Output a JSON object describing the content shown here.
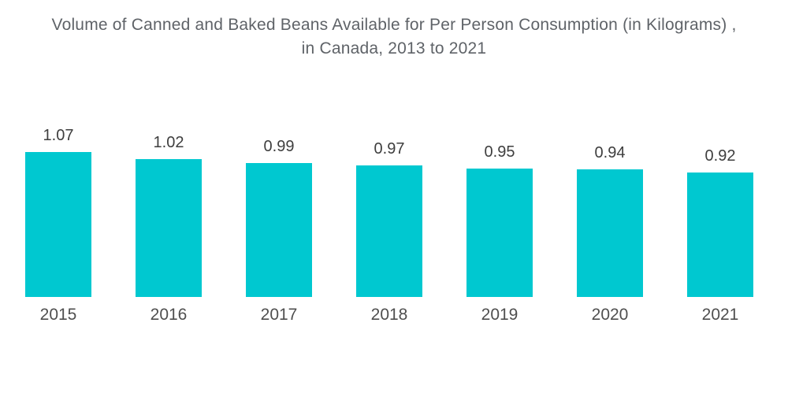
{
  "header": {
    "title_line1": "Volume of Canned and Baked Beans Available for Per Person Consumption (in Kilograms) ,",
    "title_line2": "in Canada, 2013 to 2021"
  },
  "chart_data": {
    "type": "bar",
    "title": "Volume of Canned and Baked Beans Available for Per Person Consumption (in Kilograms) , in Canada, 2013 to 2021",
    "categories": [
      "2015",
      "2016",
      "2017",
      "2018",
      "2019",
      "2020",
      "2021"
    ],
    "values": [
      1.07,
      1.02,
      0.99,
      0.97,
      0.95,
      0.94,
      0.92
    ],
    "value_labels": [
      "1.07",
      "1.02",
      "0.99",
      "0.97",
      "0.95",
      "0.94",
      "0.92"
    ],
    "xlabel": "",
    "ylabel": "",
    "ylim": [
      0,
      1.07
    ],
    "grid": false,
    "legend": false,
    "axes_visible": false,
    "bar_color": "#00c8d0",
    "value_label_color": "#3e3e3e",
    "axis_label_color": "#4f4f4f",
    "title_color": "#5f6368",
    "background_color": "#ffffff"
  }
}
